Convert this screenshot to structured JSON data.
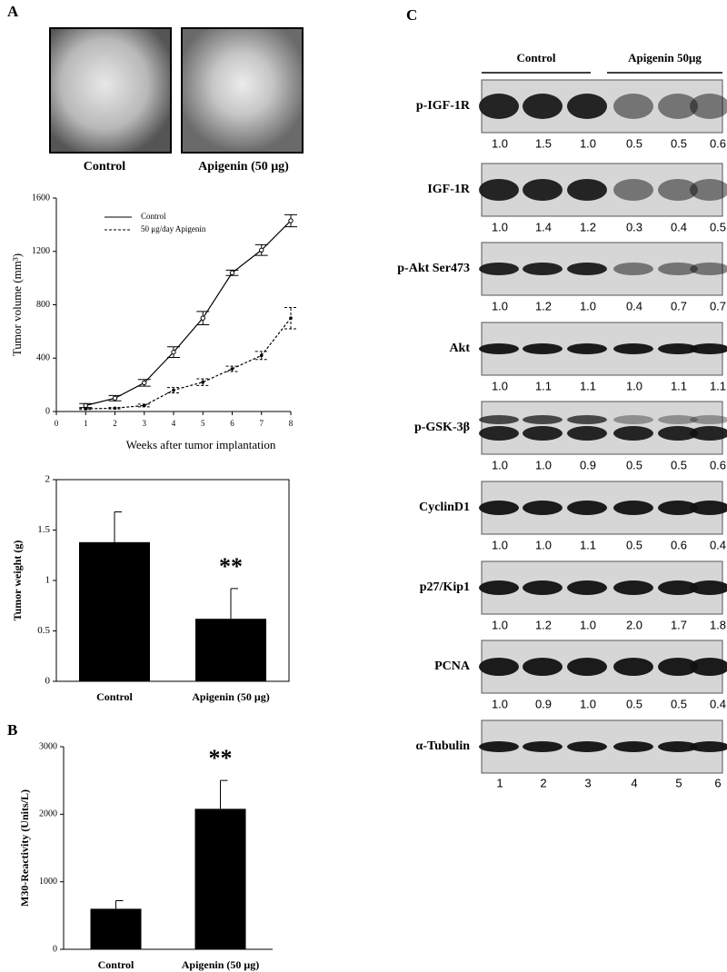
{
  "panel_labels": [
    "A",
    "B",
    "C"
  ],
  "photos": {
    "labels": [
      "Control",
      "Apigenin (50 μg)"
    ]
  },
  "chart_data": [
    {
      "type": "line",
      "xlabel": "Weeks after tumor implantation",
      "ylabel": "Tumor volume (mm³)",
      "x": [
        1,
        2,
        3,
        4,
        5,
        6,
        7,
        8
      ],
      "xlim": [
        0,
        8
      ],
      "xticks": [
        0,
        1,
        2,
        3,
        4,
        5,
        6,
        7,
        8
      ],
      "ylim": [
        0,
        1600
      ],
      "yticks": [
        0,
        400,
        800,
        1200,
        1600
      ],
      "legend": "upper left",
      "series": [
        {
          "name": "Control",
          "color": "#000000",
          "line_style": "solid",
          "marker": "circle",
          "values": [
            45,
            100,
            215,
            445,
            700,
            1040,
            1210,
            1430
          ],
          "errors": [
            15,
            20,
            25,
            40,
            50,
            20,
            40,
            45
          ]
        },
        {
          "name": "50 μg/day Apigenin",
          "color": "#000000",
          "line_style": "dashed",
          "marker": "dot",
          "values": [
            20,
            25,
            45,
            160,
            220,
            320,
            420,
            700
          ],
          "errors": [
            5,
            5,
            10,
            20,
            25,
            20,
            30,
            80
          ]
        }
      ]
    },
    {
      "type": "bar",
      "ylabel": "Tumor weight (g)",
      "categories": [
        "Control",
        "Apigenin (50 μg)"
      ],
      "values": [
        1.38,
        0.62
      ],
      "errors": [
        0.3,
        0.3
      ],
      "significance": [
        null,
        "**"
      ],
      "color": "#000000",
      "ylim": [
        0,
        2
      ],
      "yticks": [
        0,
        0.5,
        1,
        1.5,
        2
      ],
      "frame": true
    },
    {
      "type": "bar",
      "ylabel": "M30-Reactivity (Units/L)",
      "categories": [
        "Control",
        "Apigenin (50 μg)"
      ],
      "values": [
        600,
        2080
      ],
      "errors": [
        120,
        420
      ],
      "significance": [
        null,
        "**"
      ],
      "color": "#000000",
      "ylim": [
        0,
        3000
      ],
      "yticks": [
        0,
        1000,
        2000,
        3000
      ],
      "frame": false
    }
  ],
  "blot": {
    "groups": [
      "Control",
      "Apigenin 50μg"
    ],
    "rows": [
      {
        "label": "p-IGF-1R",
        "quant": [
          "1.0",
          "1.5",
          "1.0",
          "0.5",
          "0.5",
          "0.6"
        ]
      },
      {
        "label": "IGF-1R",
        "quant": [
          "1.0",
          "1.4",
          "1.2",
          "0.3",
          "0.4",
          "0.5"
        ]
      },
      {
        "label": "p-Akt Ser473",
        "quant": [
          "1.0",
          "1.2",
          "1.0",
          "0.4",
          "0.7",
          "0.7"
        ]
      },
      {
        "label": "Akt",
        "quant": [
          "1.0",
          "1.1",
          "1.1",
          "1.0",
          "1.1",
          "1.1"
        ]
      },
      {
        "label": "p-GSK-3β",
        "quant": [
          "1.0",
          "1.0",
          "0.9",
          "0.5",
          "0.5",
          "0.6"
        ]
      },
      {
        "label": "CyclinD1",
        "quant": [
          "1.0",
          "1.0",
          "1.1",
          "0.5",
          "0.6",
          "0.4"
        ]
      },
      {
        "label": "p27/Kip1",
        "quant": [
          "1.0",
          "1.2",
          "1.0",
          "2.0",
          "1.7",
          "1.8"
        ]
      },
      {
        "label": "PCNA",
        "quant": [
          "1.0",
          "0.9",
          "1.0",
          "0.5",
          "0.5",
          "0.4"
        ]
      },
      {
        "label": "α-Tubulin"
      }
    ],
    "lanes": [
      1,
      2,
      3,
      4,
      5,
      6
    ]
  }
}
